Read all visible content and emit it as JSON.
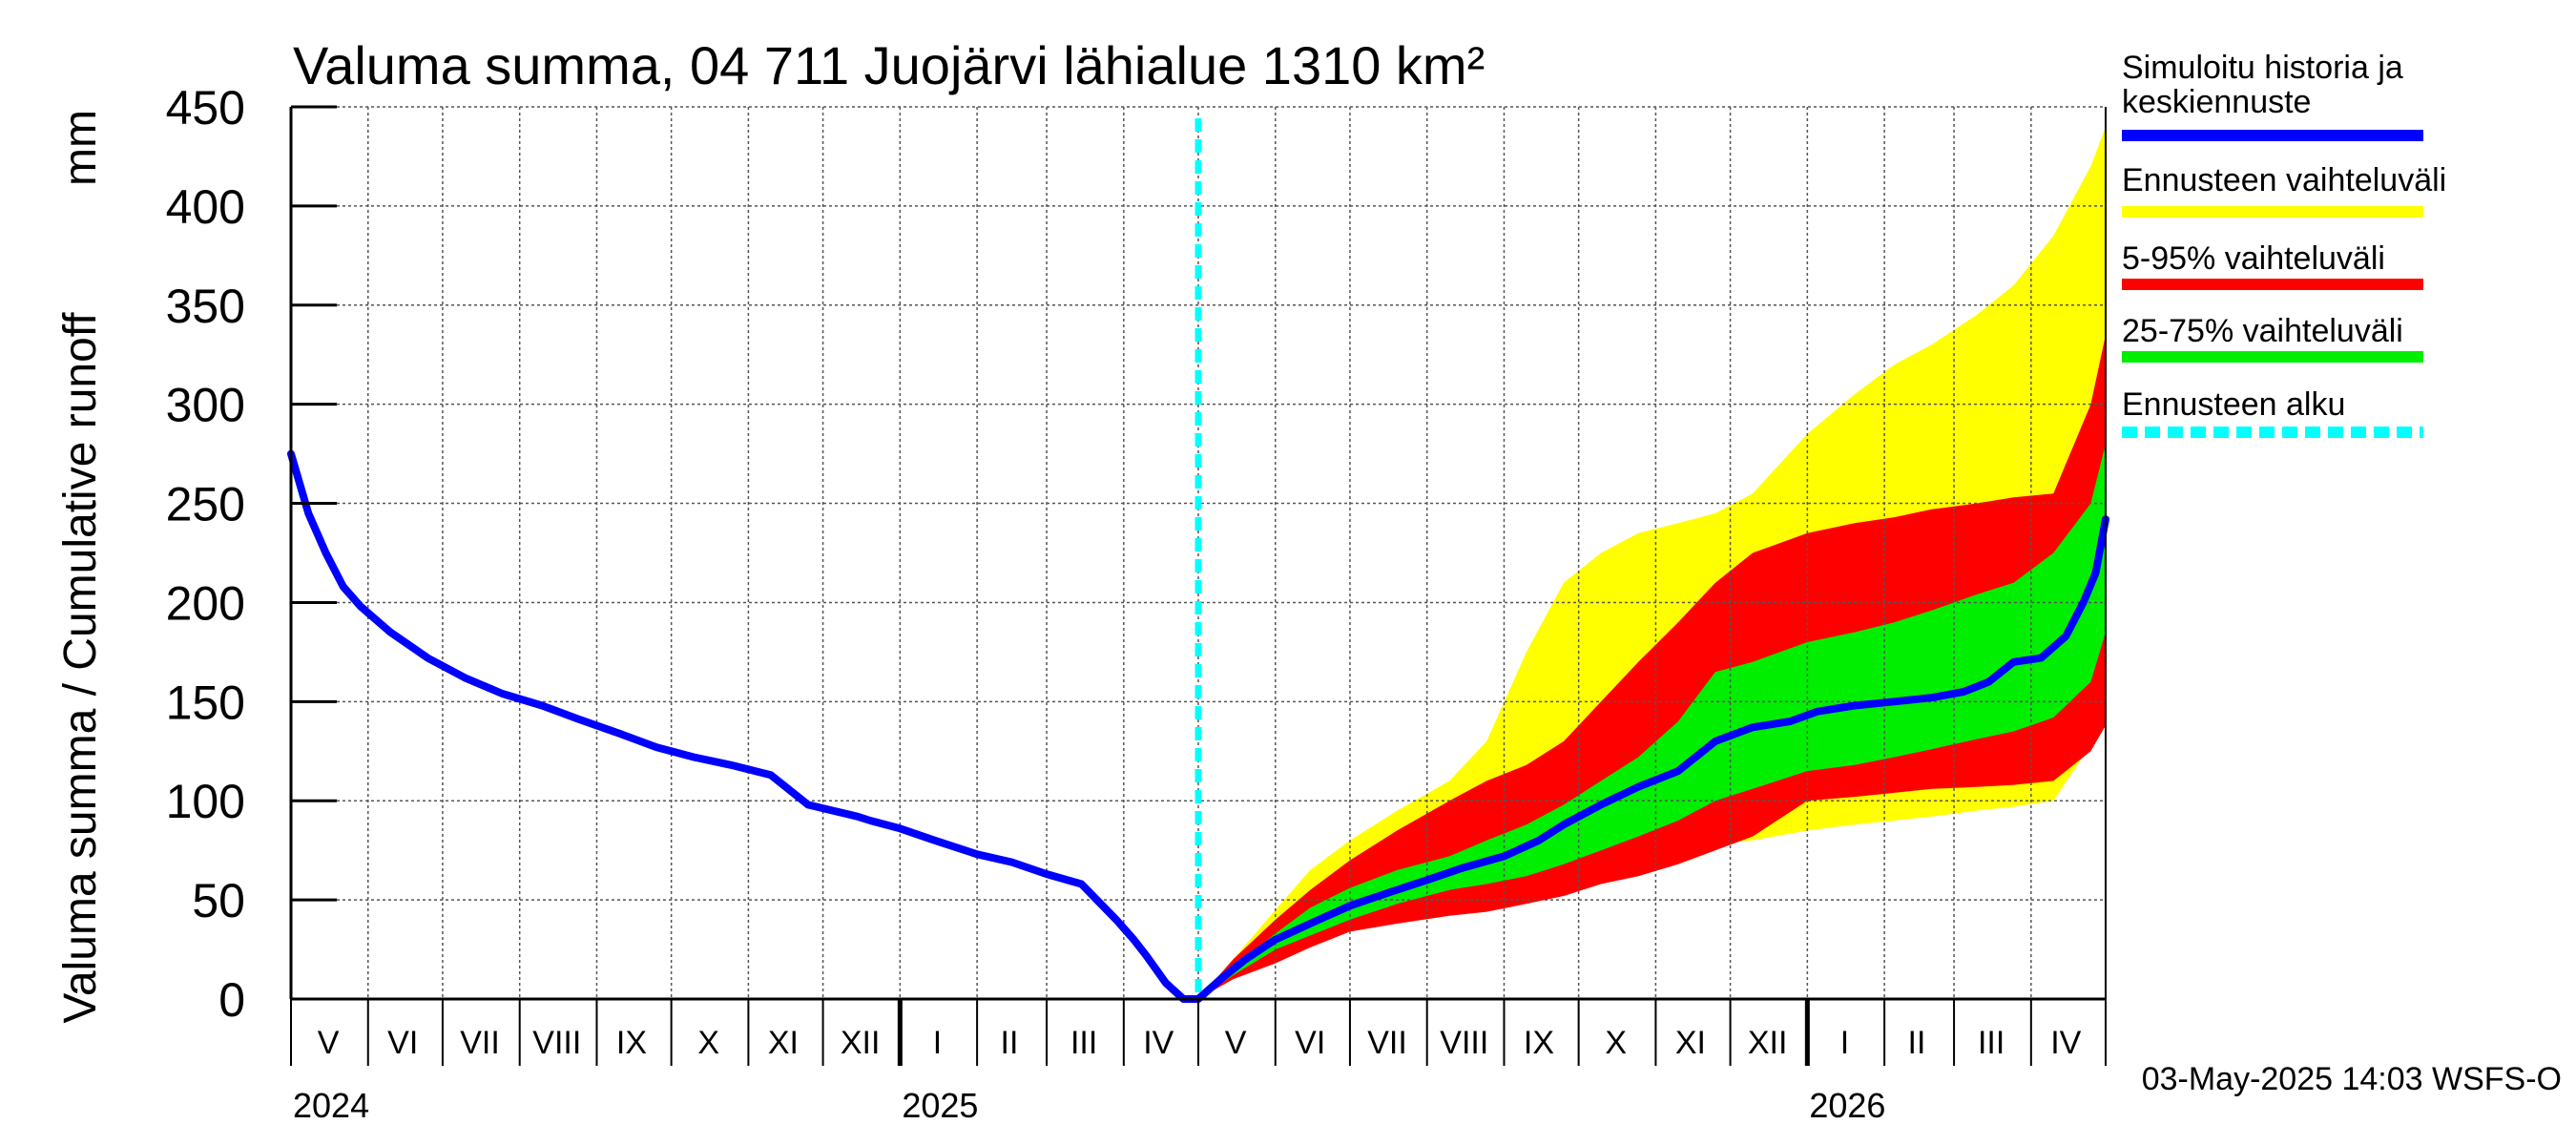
{
  "colors": {
    "background": "#ffffff",
    "axis": "#000000",
    "grid": "#555555",
    "history": "#0000ff",
    "band_outer": "#ffff00",
    "band_5_95": "#ff0000",
    "band_25_75": "#00ee00",
    "forecast_start": "#00ffff"
  },
  "chart_data": {
    "type": "area",
    "title": "Valuma summa, 04 711 Juojärvi lähialue 1310 km²",
    "ylabel": "Valuma summa / Cumulative runoff",
    "yunit": "mm",
    "xlabel": "",
    "ylim": [
      0,
      450
    ],
    "yticks": [
      0,
      50,
      100,
      150,
      200,
      250,
      300,
      350,
      400,
      450
    ],
    "xlim": [
      "2024-05-01",
      "2026-05-01"
    ],
    "grid": true,
    "legend_position": "right",
    "month_labels": [
      {
        "label": "V",
        "date": "2024-05-16"
      },
      {
        "label": "VI",
        "date": "2024-06-15"
      },
      {
        "label": "VII",
        "date": "2024-07-16"
      },
      {
        "label": "VIII",
        "date": "2024-08-16"
      },
      {
        "label": "IX",
        "date": "2024-09-15"
      },
      {
        "label": "X",
        "date": "2024-10-16"
      },
      {
        "label": "XI",
        "date": "2024-11-15"
      },
      {
        "label": "XII",
        "date": "2024-12-16"
      },
      {
        "label": "I",
        "date": "2025-01-16"
      },
      {
        "label": "II",
        "date": "2025-02-14"
      },
      {
        "label": "III",
        "date": "2025-03-16"
      },
      {
        "label": "IV",
        "date": "2025-04-15"
      },
      {
        "label": "V",
        "date": "2025-05-16"
      },
      {
        "label": "VI",
        "date": "2025-06-15"
      },
      {
        "label": "VII",
        "date": "2025-07-16"
      },
      {
        "label": "VIII",
        "date": "2025-08-16"
      },
      {
        "label": "IX",
        "date": "2025-09-15"
      },
      {
        "label": "X",
        "date": "2025-10-16"
      },
      {
        "label": "XI",
        "date": "2025-11-15"
      },
      {
        "label": "XII",
        "date": "2025-12-16"
      },
      {
        "label": "I",
        "date": "2026-01-16"
      },
      {
        "label": "II",
        "date": "2026-02-14"
      },
      {
        "label": "III",
        "date": "2026-03-16"
      },
      {
        "label": "IV",
        "date": "2026-04-15"
      }
    ],
    "year_labels": [
      {
        "label": "2024",
        "date": "2024-05-01"
      },
      {
        "label": "2025",
        "date": "2025-01-01"
      },
      {
        "label": "2026",
        "date": "2026-01-01"
      }
    ],
    "forecast_start_date": "2025-05-01",
    "series": [
      {
        "name": "Simuloitu historia ja keskiennuste",
        "x": [
          "2024-05-01",
          "2024-05-08",
          "2024-05-15",
          "2024-05-22",
          "2024-05-29",
          "2024-06-10",
          "2024-06-25",
          "2024-07-10",
          "2024-07-25",
          "2024-08-10",
          "2024-08-25",
          "2024-09-10",
          "2024-09-25",
          "2024-10-10",
          "2024-10-25",
          "2024-11-10",
          "2024-11-25",
          "2024-12-05",
          "2024-12-15",
          "2024-12-20",
          "2025-01-01",
          "2025-01-15",
          "2025-02-01",
          "2025-02-15",
          "2025-03-01",
          "2025-03-15",
          "2025-03-29",
          "2025-04-05",
          "2025-04-10",
          "2025-04-18",
          "2025-04-25",
          "2025-05-01",
          "2025-05-10",
          "2025-05-20",
          "2025-06-01",
          "2025-06-15",
          "2025-07-01",
          "2025-07-15",
          "2025-08-01",
          "2025-08-15",
          "2025-09-01",
          "2025-09-15",
          "2025-09-25",
          "2025-10-10",
          "2025-10-25",
          "2025-11-10",
          "2025-11-25",
          "2025-12-10",
          "2025-12-25",
          "2026-01-05",
          "2026-01-20",
          "2026-02-05",
          "2026-02-20",
          "2026-03-05",
          "2026-03-15",
          "2026-03-25",
          "2026-04-05",
          "2026-04-15",
          "2026-04-22",
          "2026-04-27",
          "2026-05-01"
        ],
        "y": [
          275,
          245,
          225,
          208,
          198,
          185,
          172,
          162,
          154,
          148,
          141,
          134,
          127,
          122,
          118,
          113,
          98,
          95,
          92,
          90,
          86,
          80,
          73,
          69,
          63,
          58,
          40,
          30,
          22,
          8,
          0,
          0,
          10,
          20,
          30,
          38,
          47,
          53,
          60,
          66,
          72,
          80,
          88,
          98,
          107,
          115,
          130,
          137,
          140,
          145,
          148,
          150,
          152,
          155,
          160,
          170,
          172,
          183,
          200,
          215,
          242
        ]
      },
      {
        "name": "Ennusteen vaihteluväli",
        "x": [
          "2025-05-01",
          "2025-05-15",
          "2025-06-01",
          "2025-06-15",
          "2025-07-01",
          "2025-07-20",
          "2025-08-10",
          "2025-08-25",
          "2025-09-10",
          "2025-09-25",
          "2025-10-10",
          "2025-10-25",
          "2025-11-10",
          "2025-11-25",
          "2025-12-10",
          "2026-01-01",
          "2026-01-20",
          "2026-02-05",
          "2026-02-20",
          "2026-03-10",
          "2026-03-25",
          "2026-04-10",
          "2026-04-25",
          "2026-05-01"
        ],
        "upper": [
          0,
          20,
          45,
          65,
          80,
          95,
          110,
          130,
          175,
          210,
          225,
          235,
          240,
          245,
          255,
          285,
          305,
          320,
          330,
          345,
          360,
          385,
          420,
          440
        ],
        "lower": [
          0,
          10,
          20,
          28,
          35,
          40,
          44,
          47,
          50,
          55,
          62,
          70,
          76,
          78,
          80,
          85,
          88,
          90,
          92,
          95,
          97,
          100,
          128,
          140
        ]
      },
      {
        "name": "5-95% vaihteluväli",
        "x": [
          "2025-05-01",
          "2025-05-15",
          "2025-06-01",
          "2025-06-15",
          "2025-07-01",
          "2025-07-20",
          "2025-08-10",
          "2025-08-25",
          "2025-09-10",
          "2025-09-25",
          "2025-10-10",
          "2025-10-25",
          "2025-11-10",
          "2025-11-25",
          "2025-12-10",
          "2026-01-01",
          "2026-01-20",
          "2026-02-05",
          "2026-02-20",
          "2026-03-10",
          "2026-03-25",
          "2026-04-10",
          "2026-04-25",
          "2026-05-01"
        ],
        "upper": [
          0,
          20,
          40,
          55,
          70,
          85,
          100,
          110,
          118,
          130,
          150,
          170,
          190,
          210,
          225,
          235,
          240,
          243,
          247,
          250,
          253,
          255,
          300,
          335
        ],
        "lower": [
          0,
          10,
          18,
          26,
          34,
          38,
          42,
          44,
          48,
          52,
          58,
          62,
          68,
          75,
          82,
          100,
          102,
          104,
          106,
          107,
          108,
          110,
          125,
          138
        ]
      },
      {
        "name": "25-75% vaihteluväli",
        "x": [
          "2025-05-01",
          "2025-05-15",
          "2025-06-01",
          "2025-06-15",
          "2025-07-01",
          "2025-07-20",
          "2025-08-10",
          "2025-08-25",
          "2025-09-10",
          "2025-09-25",
          "2025-10-10",
          "2025-10-25",
          "2025-11-10",
          "2025-11-25",
          "2025-12-10",
          "2026-01-01",
          "2026-01-20",
          "2026-02-05",
          "2026-02-20",
          "2026-03-10",
          "2026-03-25",
          "2026-04-10",
          "2026-04-25",
          "2026-05-01"
        ],
        "upper": [
          0,
          16,
          33,
          46,
          56,
          65,
          72,
          80,
          88,
          98,
          110,
          122,
          140,
          165,
          170,
          180,
          185,
          190,
          196,
          204,
          210,
          225,
          250,
          280
        ],
        "lower": [
          0,
          12,
          25,
          32,
          40,
          48,
          55,
          58,
          62,
          68,
          75,
          82,
          90,
          100,
          106,
          115,
          118,
          122,
          126,
          131,
          135,
          142,
          160,
          185
        ]
      }
    ]
  },
  "legend": {
    "items": [
      {
        "label_line1": "Simuloitu historia ja",
        "label_line2": "keskiennuste",
        "color": "#0000ff",
        "style": "solid"
      },
      {
        "label_line1": "Ennusteen vaihteluväli",
        "label_line2": "",
        "color": "#ffff00",
        "style": "solid"
      },
      {
        "label_line1": "5-95% vaihteluväli",
        "label_line2": "",
        "color": "#ff0000",
        "style": "solid"
      },
      {
        "label_line1": "25-75% vaihteluväli",
        "label_line2": "",
        "color": "#00ee00",
        "style": "solid"
      },
      {
        "label_line1": "Ennusteen alku",
        "label_line2": "",
        "color": "#00ffff",
        "style": "dashed"
      }
    ]
  },
  "footer": {
    "timestamp": "03-May-2025 14:03 WSFS-O"
  }
}
